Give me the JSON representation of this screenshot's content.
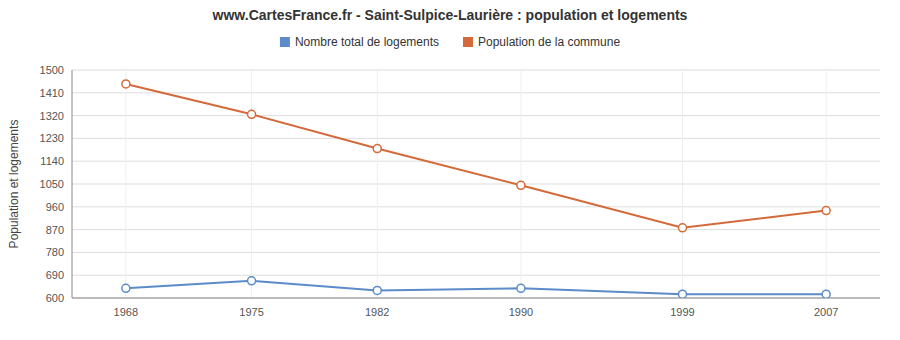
{
  "chart_data": {
    "type": "line",
    "title": "www.CartesFrance.fr - Saint-Sulpice-Laurière : population et logements",
    "ylabel": "Population et logements",
    "x": [
      1968,
      1975,
      1982,
      1990,
      1999,
      2007
    ],
    "xlim": [
      1965,
      2010
    ],
    "xticks": [
      1968,
      1975,
      1982,
      1990,
      1999,
      2007
    ],
    "ylim": [
      600,
      1500
    ],
    "yticks": [
      600,
      690,
      780,
      870,
      960,
      1050,
      1140,
      1230,
      1320,
      1410,
      1500
    ],
    "grid": true,
    "legend": "top",
    "series": [
      {
        "name": "Nombre total de logements",
        "color": "#5b8bc9",
        "marker": "circle",
        "values": [
          638,
          668,
          630,
          638,
          615,
          615
        ]
      },
      {
        "name": "Population de la commune",
        "color": "#d4693a",
        "marker": "circle",
        "values": [
          1445,
          1325,
          1190,
          1045,
          877,
          945
        ]
      }
    ]
  }
}
